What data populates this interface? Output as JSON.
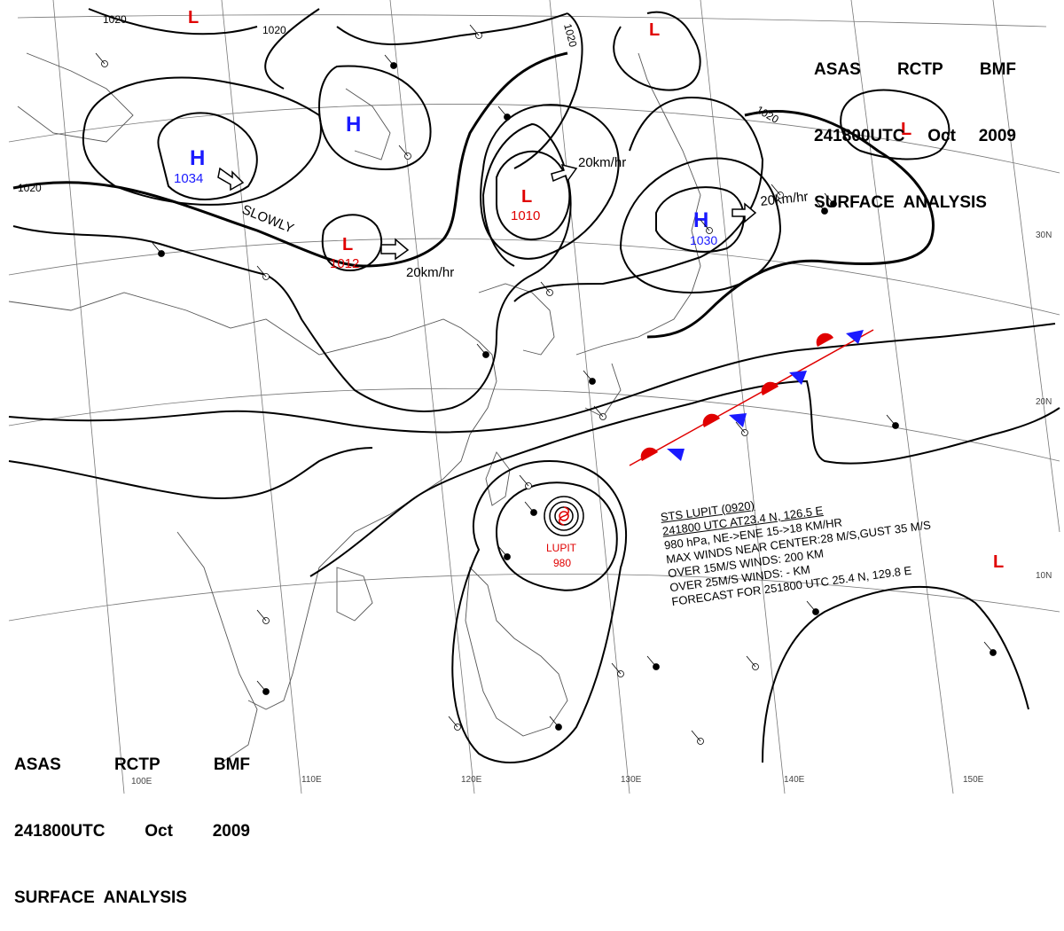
{
  "header_top_right": {
    "line1": [
      "ASAS",
      "RCTP",
      "BMF"
    ],
    "line2": [
      "241800UTC",
      "Oct",
      "2009"
    ],
    "line3": "SURFACE  ANALYSIS"
  },
  "header_bottom_left": {
    "line1": [
      "ASAS",
      "RCTP",
      "BMF"
    ],
    "line2": [
      "241800UTC",
      "Oct",
      "2009"
    ],
    "line3": "SURFACE  ANALYSIS"
  },
  "storm_info": [
    "STS  LUPIT  (0920)",
    "241800 UTC  AT23.4 N, 126.5 E",
    "980 hPa, NE->ENE  15->18 KM/HR",
    "MAX WINDS NEAR CENTER:28 M/S,GUST 35 M/S",
    "OVER 15M/S WINDS: 200 KM",
    "OVER 25M/S WINDS: - KM",
    "FORECAST FOR 251800 UTC 25.4 N, 129.8 E"
  ],
  "pressure_centers": {
    "high_1034": {
      "symbol": "H",
      "value": "1034",
      "color": "#1a1aff"
    },
    "high_upper": {
      "symbol": "H",
      "value": "",
      "color": "#1a1aff"
    },
    "high_1030": {
      "symbol": "H",
      "value": "1030",
      "color": "#1a1aff"
    },
    "low_1012": {
      "symbol": "L",
      "value": "1012",
      "color": "#e00000"
    },
    "low_1010": {
      "symbol": "L",
      "value": "1010",
      "color": "#e00000"
    },
    "low_top": {
      "symbol": "L",
      "value": "",
      "color": "#e00000"
    },
    "low_topright": {
      "symbol": "L",
      "value": "",
      "color": "#e00000"
    },
    "low_farright": {
      "symbol": "L",
      "value": "",
      "color": "#e00000"
    },
    "low_east": {
      "symbol": "L",
      "value": "",
      "color": "#e00000"
    },
    "typhoon": {
      "name": "LUPIT",
      "value": "980",
      "color": "#e00000"
    }
  },
  "motion_labels": {
    "slowly": "SLOWLY",
    "speed_low1012": "20km/hr",
    "speed_low1010": "20km/hr",
    "speed_high1030": "20km/hr"
  },
  "isobar_labels": {
    "a": "1020",
    "b": "1020",
    "c": "1020",
    "d": "1020",
    "e": "1020"
  },
  "longitude_labels": [
    "100E",
    "110E",
    "120E",
    "130E",
    "140E",
    "150E"
  ],
  "latitude_labels": [
    "30N",
    "20N",
    "10N"
  ],
  "colors": {
    "high": "#1a1aff",
    "low": "#e00000",
    "warm_front": "#e00000",
    "cold_front": "#1a1aff",
    "isobar": "#000000",
    "coast": "#555555",
    "grid": "#777777"
  }
}
